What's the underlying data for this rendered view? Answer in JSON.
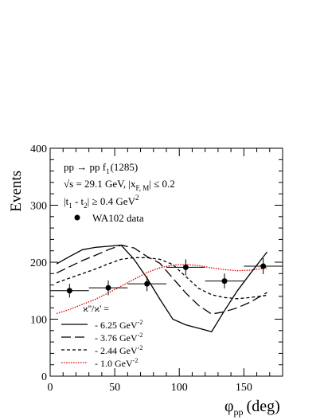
{
  "chart_data": {
    "type": "line",
    "xlabel": "φ",
    "xlabel_sub": "pp",
    "xlabel_unit": "(deg)",
    "ylabel": "Events",
    "xlim": [
      0,
      180
    ],
    "ylim": [
      0,
      400
    ],
    "x_ticks": [
      0,
      50,
      100,
      150
    ],
    "y_ticks": [
      0,
      100,
      200,
      300,
      400
    ],
    "x_tick_labels": [
      "0",
      "50",
      "100",
      "150"
    ],
    "y_tick_labels": [
      "0",
      "100",
      "200",
      "300",
      "400"
    ],
    "annotations": {
      "reaction": "pp → pp f",
      "reaction_sub": "1",
      "reaction_mass": "(1285)",
      "energy": "√s = 29.1 GeV,  |x",
      "energy_sub": "F, M",
      "energy_cut": "| ≤ 0.2",
      "t_cut_pre": "|t",
      "t_cut_sub1": "1",
      "t_cut_mid": " - t",
      "t_cut_sub2": "2",
      "t_cut_post": "| ≥ 0.4 GeV",
      "t_cut_sup": "2",
      "data_label": "WA102 data",
      "kappa_label": "ϰ''/ϰ' ="
    },
    "data_points": {
      "name": "WA102 data",
      "x": [
        15,
        45,
        75,
        105,
        135,
        165
      ],
      "y": [
        150,
        155,
        162,
        191,
        167,
        193
      ],
      "xerr": [
        15,
        15,
        15,
        15,
        15,
        15
      ],
      "yerr": [
        12,
        13,
        13,
        14,
        13,
        14
      ]
    },
    "series": [
      {
        "name": "- 6.25 GeV",
        "sup": "-2",
        "style": "solid",
        "color": "#000000",
        "x": [
          5,
          15,
          25,
          35,
          45,
          55,
          65,
          75,
          85,
          95,
          105,
          115,
          125,
          135,
          145,
          155,
          168
        ],
        "y": [
          197,
          210,
          222,
          226,
          228,
          230,
          205,
          172,
          135,
          100,
          90,
          84,
          78,
          115,
          150,
          180,
          218
        ]
      },
      {
        "name": "- 3.76 GeV",
        "sup": "-2",
        "style": "longdash",
        "color": "#000000",
        "x": [
          5,
          15,
          25,
          35,
          45,
          55,
          65,
          75,
          85,
          95,
          105,
          115,
          125,
          135,
          145,
          155,
          168
        ],
        "y": [
          181,
          192,
          203,
          212,
          222,
          230,
          225,
          210,
          198,
          172,
          146,
          124,
          109,
          113,
          120,
          130,
          147
        ]
      },
      {
        "name": "- 2.44 GeV",
        "sup": "-2",
        "style": "shortdash",
        "color": "#000000",
        "x": [
          5,
          15,
          25,
          35,
          45,
          55,
          65,
          75,
          85,
          95,
          105,
          115,
          125,
          135,
          145,
          155,
          168
        ],
        "y": [
          164,
          172,
          180,
          188,
          197,
          205,
          208,
          208,
          205,
          196,
          175,
          154,
          143,
          138,
          136,
          138,
          142
        ]
      },
      {
        "name": "- 1.0 GeV",
        "sup": "-2",
        "style": "dotted",
        "color": "#d40000",
        "x": [
          5,
          15,
          25,
          35,
          45,
          55,
          65,
          75,
          85,
          95,
          105,
          115,
          125,
          135,
          145,
          155,
          168
        ],
        "y": [
          110,
          117,
          126,
          135,
          146,
          158,
          170,
          182,
          190,
          195,
          196,
          194,
          190,
          187,
          185,
          186,
          190
        ]
      }
    ]
  }
}
